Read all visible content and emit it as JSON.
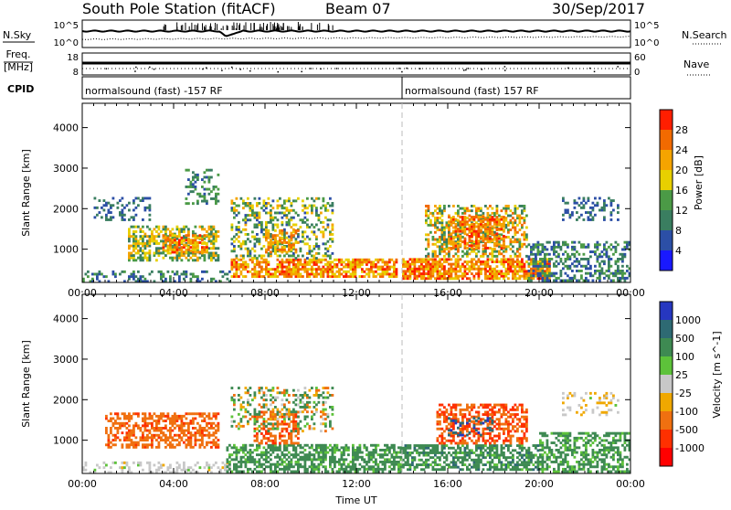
{
  "header": {
    "station": "South Pole Station (fitACF)",
    "beam": "Beam 07",
    "date": "30/Sep/2017"
  },
  "top_panels": {
    "nsky_label": "N.Sky",
    "nsky_ticks": [
      "10^5",
      "10^0"
    ],
    "nsky_right_ticks": [
      "10^5",
      "10^0"
    ],
    "nsearch_label": "N.Search",
    "freq_label_1": "Freq.",
    "freq_label_2": "[MHz]",
    "freq_ticks": [
      "18",
      "8"
    ],
    "nave_ticks": [
      "60",
      "0"
    ],
    "nave_label": "Nave",
    "cpid_label": "CPID",
    "cpid_segments": [
      {
        "label": "normalsound (fast) -157 RF",
        "start_hour": 0,
        "end_hour": 14
      },
      {
        "label": "normalsound (fast) 157 RF",
        "start_hour": 14,
        "end_hour": 24
      }
    ]
  },
  "colors": {
    "power_scale": [
      "#1919ff",
      "#2c4fa6",
      "#3a7e60",
      "#4b9a46",
      "#e8d000",
      "#f5a400",
      "#f26a00",
      "#ff1e00"
    ],
    "velocity_scale": [
      "#2637c0",
      "#2e6a73",
      "#3e8a52",
      "#5dc23a",
      "#c8c8c8",
      "#f0a800",
      "#f07010",
      "#ff3000",
      "#ff0000"
    ]
  },
  "chart_data": [
    {
      "type": "heatmap",
      "quantity": "Power",
      "ylabel": "Slant Range [km]",
      "yticks": [
        1000,
        2000,
        3000,
        4000
      ],
      "ylim": [
        180,
        4600
      ],
      "xlim": [
        0,
        24
      ],
      "xticks": [
        0,
        4,
        8,
        12,
        16,
        20,
        24
      ],
      "xtick_labels": [
        "00:00",
        "04:00",
        "08:00",
        "12:00",
        "16:00",
        "20:00",
        "00:00"
      ],
      "colorbar_label": "Power [dB]",
      "colorbar_ticks": [
        4,
        8,
        12,
        16,
        20,
        24,
        28
      ],
      "colorbar_range": [
        0,
        32
      ],
      "regions": [
        {
          "t0": 0.0,
          "t1": 6.5,
          "r0": 180,
          "r1": 450,
          "v0": 4,
          "v1": 14,
          "density": 0.35
        },
        {
          "t0": 2.0,
          "t1": 6.0,
          "r0": 700,
          "r1": 1600,
          "v0": 8,
          "v1": 24,
          "density": 0.55
        },
        {
          "t0": 3.5,
          "t1": 5.5,
          "r0": 900,
          "r1": 1400,
          "v0": 18,
          "v1": 30,
          "density": 0.6
        },
        {
          "t0": 0.5,
          "t1": 3.0,
          "r0": 1700,
          "r1": 2300,
          "v0": 4,
          "v1": 12,
          "density": 0.3
        },
        {
          "t0": 4.5,
          "t1": 6.0,
          "r0": 2100,
          "r1": 3000,
          "v0": 6,
          "v1": 16,
          "density": 0.35
        },
        {
          "t0": 6.5,
          "t1": 13.8,
          "r0": 300,
          "r1": 750,
          "v0": 16,
          "v1": 30,
          "density": 0.7
        },
        {
          "t0": 6.5,
          "t1": 11.0,
          "r0": 750,
          "r1": 2300,
          "v0": 6,
          "v1": 22,
          "density": 0.35
        },
        {
          "t0": 8.0,
          "t1": 9.5,
          "r0": 900,
          "r1": 1500,
          "v0": 18,
          "v1": 28,
          "density": 0.55
        },
        {
          "t0": 14.0,
          "t1": 20.5,
          "r0": 250,
          "r1": 800,
          "v0": 18,
          "v1": 30,
          "density": 0.75
        },
        {
          "t0": 15.0,
          "t1": 19.5,
          "r0": 800,
          "r1": 2100,
          "v0": 8,
          "v1": 28,
          "density": 0.5
        },
        {
          "t0": 16.0,
          "t1": 18.5,
          "r0": 1000,
          "r1": 1800,
          "v0": 20,
          "v1": 30,
          "density": 0.55
        },
        {
          "t0": 19.5,
          "t1": 24.0,
          "r0": 200,
          "r1": 1200,
          "v0": 4,
          "v1": 16,
          "density": 0.45
        },
        {
          "t0": 21.0,
          "t1": 23.5,
          "r0": 1700,
          "r1": 2300,
          "v0": 4,
          "v1": 10,
          "density": 0.3
        }
      ]
    },
    {
      "type": "heatmap",
      "quantity": "Velocity",
      "ylabel": "Slant Range [km]",
      "yticks": [
        1000,
        2000,
        3000,
        4000
      ],
      "ylim": [
        180,
        4600
      ],
      "xlim": [
        0,
        24
      ],
      "xticks": [
        0,
        4,
        8,
        12,
        16,
        20,
        24
      ],
      "xtick_labels": [
        "00:00",
        "04:00",
        "08:00",
        "12:00",
        "16:00",
        "20:00",
        "00:00"
      ],
      "xlabel": "Time UT",
      "colorbar_label": "Velocity [m s^-1]",
      "colorbar_ticks": [
        "1000",
        "500",
        "100",
        "25",
        "-25",
        "-100",
        "-500",
        "-1000"
      ],
      "regions": [
        {
          "t0": 0.0,
          "t1": 6.5,
          "r0": 180,
          "r1": 500,
          "v0": -30,
          "v1": 30,
          "density": 0.3
        },
        {
          "t0": 1.0,
          "t1": 6.0,
          "r0": 800,
          "r1": 1700,
          "v0": -600,
          "v1": -100,
          "density": 0.55
        },
        {
          "t0": 6.3,
          "t1": 14.0,
          "r0": 200,
          "r1": 900,
          "v0": 30,
          "v1": 400,
          "density": 0.6
        },
        {
          "t0": 7.5,
          "t1": 9.5,
          "r0": 900,
          "r1": 1700,
          "v0": -700,
          "v1": -100,
          "density": 0.5
        },
        {
          "t0": 6.5,
          "t1": 11.0,
          "r0": 1200,
          "r1": 2300,
          "v0": -200,
          "v1": 300,
          "density": 0.3
        },
        {
          "t0": 14.0,
          "t1": 20.0,
          "r0": 250,
          "r1": 900,
          "v0": 25,
          "v1": 600,
          "density": 0.6
        },
        {
          "t0": 15.5,
          "t1": 19.5,
          "r0": 900,
          "r1": 1900,
          "v0": -900,
          "v1": -100,
          "density": 0.5
        },
        {
          "t0": 16.0,
          "t1": 18.0,
          "r0": 1100,
          "r1": 1600,
          "v0": 500,
          "v1": 1100,
          "density": 0.25
        },
        {
          "t0": 20.0,
          "t1": 24.0,
          "r0": 200,
          "r1": 1200,
          "v0": 30,
          "v1": 300,
          "density": 0.5
        },
        {
          "t0": 21.0,
          "t1": 23.5,
          "r0": 1600,
          "r1": 2200,
          "v0": -100,
          "v1": 30,
          "density": 0.3
        }
      ]
    }
  ]
}
